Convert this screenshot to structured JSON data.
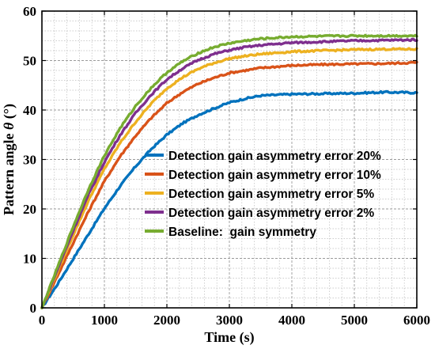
{
  "chart_data": {
    "type": "line",
    "title": "",
    "xlabel": "Time (s)",
    "ylabel_prefix": "Pattern angle ",
    "ylabel_symbol": "θ",
    "ylabel_suffix": " (°)",
    "xlim": [
      0,
      6000
    ],
    "ylim": [
      0,
      60
    ],
    "xticks": [
      0,
      1000,
      2000,
      3000,
      4000,
      5000,
      6000
    ],
    "xtick_labels": [
      "0",
      "1000",
      "2000",
      "3000",
      "4000",
      "5000",
      "6000"
    ],
    "yticks": [
      0,
      10,
      20,
      30,
      40,
      50,
      60
    ],
    "ytick_labels": [
      "0",
      "10",
      "20",
      "30",
      "40",
      "50",
      "60"
    ],
    "grid": true,
    "minor_grid": true,
    "legend_position": "center-right",
    "series": [
      {
        "name": "Detection gain asymmetry error 20%",
        "color": "#0072BD",
        "x": [
          0,
          250,
          500,
          750,
          1000,
          1250,
          1500,
          1750,
          2000,
          2250,
          2500,
          2750,
          3000,
          3250,
          3500,
          4000,
          4500,
          5000,
          5500,
          6000
        ],
        "y": [
          0,
          4.8,
          9.9,
          15.0,
          20.1,
          24.6,
          28.6,
          32.1,
          35.0,
          37.3,
          39.0,
          40.3,
          41.5,
          42.3,
          42.9,
          43.2,
          43.3,
          43.4,
          43.6,
          43.5
        ]
      },
      {
        "name": "Detection gain asymmetry error 10%",
        "color": "#D95319",
        "x": [
          0,
          250,
          500,
          750,
          1000,
          1250,
          1500,
          1750,
          2000,
          2250,
          2500,
          2750,
          3000,
          3250,
          3500,
          4000,
          4500,
          5000,
          5500,
          6000
        ],
        "y": [
          0,
          6.5,
          13.1,
          19.6,
          25.6,
          30.6,
          34.8,
          38.4,
          41.4,
          43.6,
          45.3,
          46.5,
          47.5,
          48.0,
          48.5,
          49.0,
          49.2,
          49.3,
          49.4,
          49.6
        ]
      },
      {
        "name": "Detection gain asymmetry error 5%",
        "color": "#EDB120",
        "x": [
          0,
          250,
          500,
          750,
          1000,
          1250,
          1500,
          1750,
          2000,
          2250,
          2500,
          2750,
          3000,
          3250,
          3500,
          4000,
          4500,
          5000,
          5500,
          6000
        ],
        "y": [
          0,
          7.3,
          14.7,
          21.8,
          28.1,
          33.3,
          37.6,
          41.3,
          44.4,
          46.6,
          48.3,
          49.5,
          50.4,
          50.9,
          51.3,
          51.8,
          52.0,
          52.2,
          52.3,
          52.3
        ]
      },
      {
        "name": "Detection gain asymmetry error 2%",
        "color": "#7E2F8E",
        "x": [
          0,
          250,
          500,
          750,
          1000,
          1250,
          1500,
          1750,
          2000,
          2250,
          2500,
          2750,
          3000,
          3250,
          3500,
          4000,
          4500,
          5000,
          5500,
          6000
        ],
        "y": [
          0,
          7.8,
          15.6,
          23.0,
          29.5,
          34.9,
          39.4,
          43.1,
          46.2,
          48.4,
          50.1,
          51.3,
          52.1,
          52.7,
          53.1,
          53.6,
          53.8,
          54.0,
          54.1,
          54.2
        ]
      },
      {
        "name": "Baseline:  gain symmetry",
        "color": "#77AC30",
        "x": [
          0,
          250,
          500,
          750,
          1000,
          1250,
          1500,
          1750,
          2000,
          2250,
          2500,
          2750,
          3000,
          3250,
          3500,
          4000,
          4500,
          5000,
          5500,
          6000
        ],
        "y": [
          0,
          8.2,
          16.4,
          24.1,
          30.8,
          36.3,
          40.8,
          44.5,
          47.6,
          49.8,
          51.5,
          52.7,
          53.5,
          54.0,
          54.4,
          54.8,
          54.9,
          55.0,
          55.0,
          55.0
        ]
      }
    ]
  }
}
